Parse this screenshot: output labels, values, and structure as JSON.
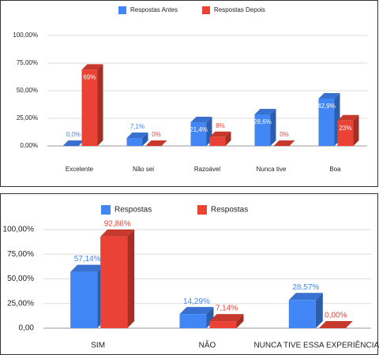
{
  "chart_data": [
    {
      "type": "bar3d",
      "categories": [
        "Excelente",
        "Não sei",
        "Razoável",
        "Nunca tive",
        "Boa"
      ],
      "series": [
        {
          "name": "Respostas Antes",
          "color": "#4285f4",
          "values": [
            0.0,
            7.1,
            21.4,
            28.6,
            42.9
          ],
          "value_labels": [
            "0,0%",
            "7,1%",
            "21,4%",
            "28,6%",
            "42,9%"
          ]
        },
        {
          "name": "Respostas Depois",
          "color": "#ea4335",
          "values": [
            69,
            0,
            8,
            0,
            23
          ],
          "value_labels": [
            "69%",
            "0%",
            "8%",
            "0%",
            "23%"
          ]
        }
      ],
      "ylim": [
        0,
        100
      ],
      "yticks": [
        {
          "value": 0,
          "label": "0,00%"
        },
        {
          "value": 25,
          "label": "25,00%"
        },
        {
          "value": 50,
          "label": "50,00%"
        },
        {
          "value": 75,
          "label": "75,00%"
        },
        {
          "value": 100,
          "label": "100,00%"
        }
      ],
      "grid": true
    },
    {
      "type": "bar3d",
      "categories": [
        "SIM",
        "NÃO",
        "NUNCA TIVE ESSA EXPERIÊNCIA"
      ],
      "series": [
        {
          "name": "Respostas",
          "color": "#4285f4",
          "values": [
            57.14,
            14.29,
            28.57
          ],
          "value_labels": [
            "57,14%",
            "14,29%",
            "28,57%"
          ]
        },
        {
          "name": "Respostas",
          "color": "#ea4335",
          "values": [
            92.86,
            7.14,
            0.0
          ],
          "value_labels": [
            "92,86%",
            "7,14%",
            "0,00%"
          ]
        }
      ],
      "ylim": [
        0,
        100
      ],
      "yticks": [
        {
          "value": 0,
          "label": "0,00"
        },
        {
          "value": 25,
          "label": "25,00%"
        },
        {
          "value": 50,
          "label": "50,00%"
        },
        {
          "value": 75,
          "label": "75,00%"
        },
        {
          "value": 100,
          "label": "100,00%"
        }
      ],
      "grid": true
    }
  ]
}
